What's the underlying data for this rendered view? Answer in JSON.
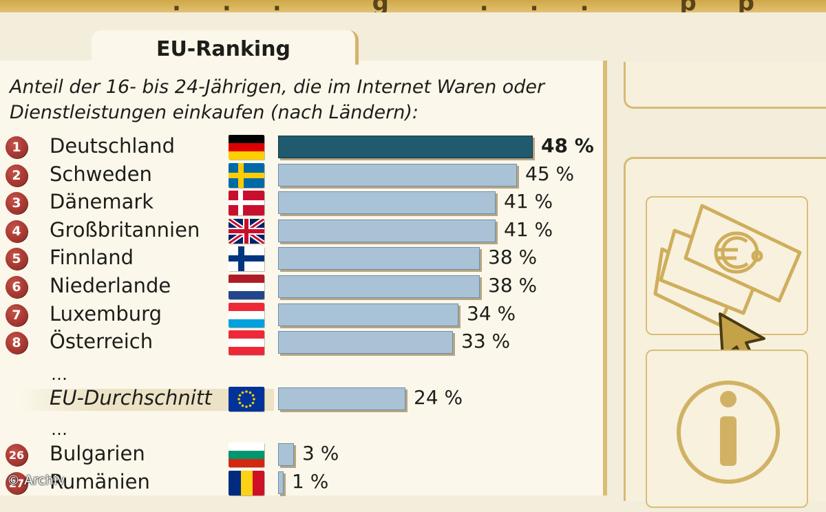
{
  "top_banner_text": "... g ... pp g",
  "tab": {
    "label": "EU-Ranking"
  },
  "subtitle_line1": "Anteil der 16- bis 24-Jährigen, die im Internet Waren oder",
  "subtitle_line2": "Dienstleistungen einkaufen (nach Ländern):",
  "ellipsis": "…",
  "copyright": "© Archiv",
  "colors": {
    "top_bar": "#1f5a6e",
    "bar": "#a9c2d6",
    "badge": "#a8332c",
    "accent": "#d8bc77"
  },
  "icons": [
    "money-euro-icon",
    "cursor-arrow-icon",
    "info-icon"
  ],
  "chart_data": {
    "type": "bar",
    "orientation": "horizontal",
    "title": "EU-Ranking",
    "subtitle": "Anteil der 16- bis 24-Jährigen, die im Internet Waren oder Dienstleistungen einkaufen (nach Ländern):",
    "xlabel": "",
    "ylabel": "",
    "xlim": [
      0,
      48
    ],
    "unit": "%",
    "rows": [
      {
        "rank": "1",
        "country": "Deutschland",
        "value": 48,
        "label": "48 %",
        "flag": "de"
      },
      {
        "rank": "2",
        "country": "Schweden",
        "value": 45,
        "label": "45 %",
        "flag": "se"
      },
      {
        "rank": "3",
        "country": "Dänemark",
        "value": 41,
        "label": "41 %",
        "flag": "dk"
      },
      {
        "rank": "4",
        "country": "Großbritannien",
        "value": 41,
        "label": "41 %",
        "flag": "gb"
      },
      {
        "rank": "5",
        "country": "Finnland",
        "value": 38,
        "label": "38 %",
        "flag": "fi"
      },
      {
        "rank": "6",
        "country": "Niederlande",
        "value": 38,
        "label": "38 %",
        "flag": "nl"
      },
      {
        "rank": "7",
        "country": "Luxemburg",
        "value": 34,
        "label": "34 %",
        "flag": "lu"
      },
      {
        "rank": "8",
        "country": "Österreich",
        "value": 33,
        "label": "33 %",
        "flag": "at"
      },
      {
        "rank": "",
        "country": "EU-Durchschnitt",
        "value": 24,
        "label": "24 %",
        "flag": "eu"
      },
      {
        "rank": "26",
        "country": "Bulgarien",
        "value": 3,
        "label": "3 %",
        "flag": "bg"
      },
      {
        "rank": "27",
        "country": "Rumänien",
        "value": 1,
        "label": "1 %",
        "flag": "ro"
      }
    ]
  }
}
